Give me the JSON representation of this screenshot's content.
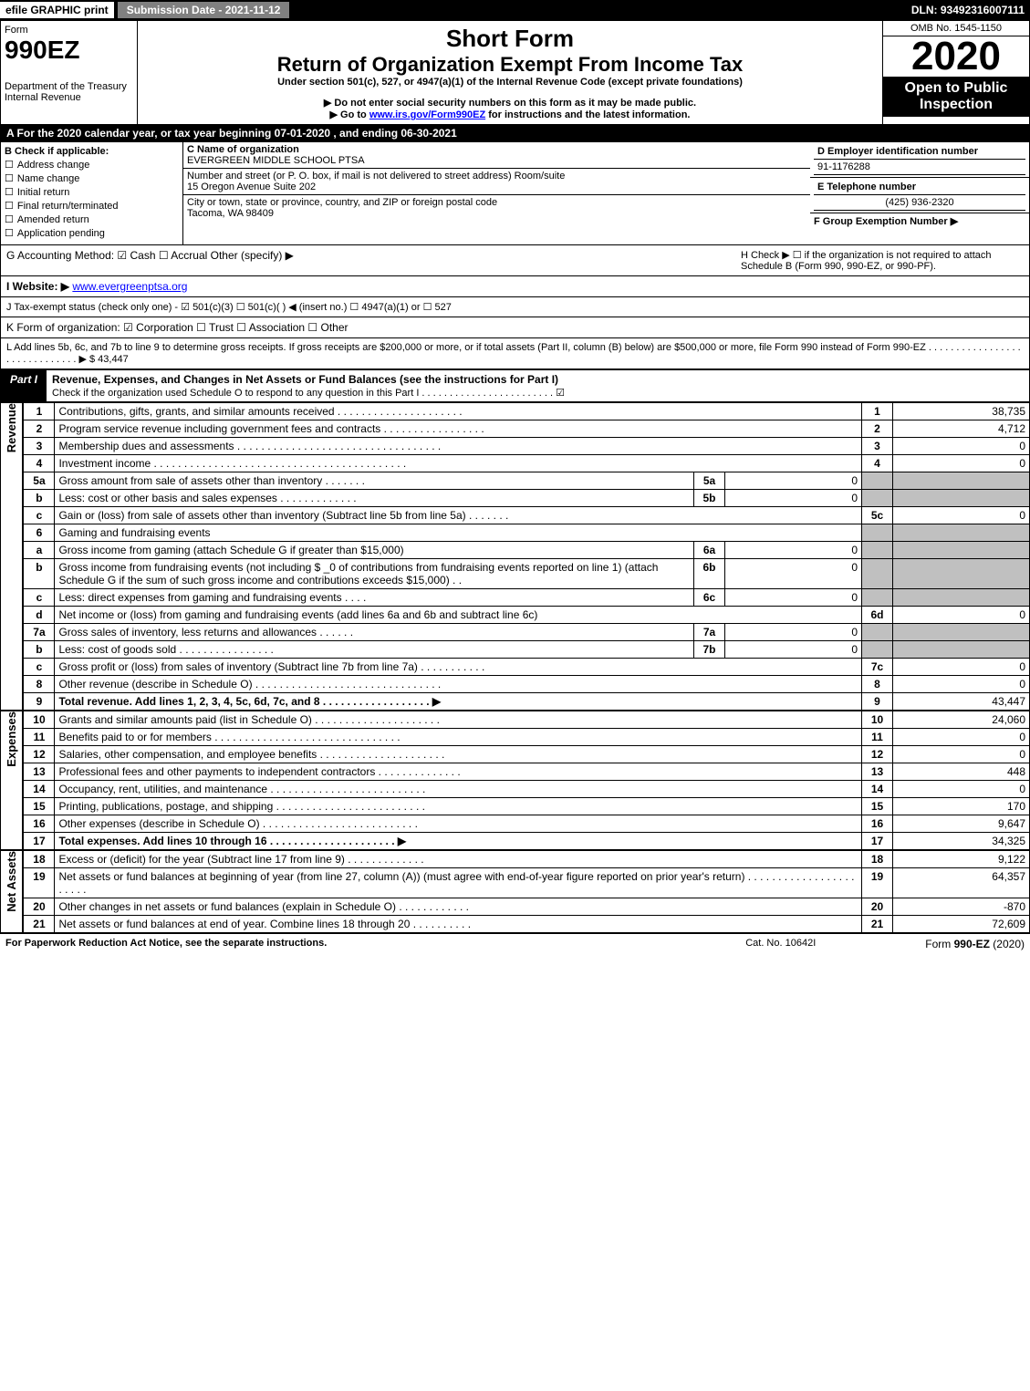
{
  "topbar": {
    "efile": "efile GRAPHIC print",
    "submission": "Submission Date - 2021-11-12",
    "dln": "DLN: 93492316007111"
  },
  "header": {
    "form_label": "Form",
    "form_number": "990EZ",
    "dept": "Department of the Treasury\nInternal Revenue",
    "short_form": "Short Form",
    "return_title": "Return of Organization Exempt From Income Tax",
    "section_text": "Under section 501(c), 527, or 4947(a)(1) of the Internal Revenue Code (except private foundations)",
    "warn1": "▶ Do not enter social security numbers on this form as it may be made public.",
    "warn2_pre": "▶ Go to ",
    "warn2_link": "www.irs.gov/Form990EZ",
    "warn2_post": " for instructions and the latest information.",
    "omb": "OMB No. 1545-1150",
    "year": "2020",
    "open_public": "Open to Public Inspection"
  },
  "line_a": "A For the 2020 calendar year, or tax year beginning 07-01-2020 , and ending 06-30-2021",
  "section_b": {
    "title": "B  Check if applicable:",
    "opts": [
      "Address change",
      "Name change",
      "Initial return",
      "Final return/terminated",
      "Amended return",
      "Application pending"
    ]
  },
  "section_c": {
    "name_label": "C Name of organization",
    "name": "EVERGREEN MIDDLE SCHOOL PTSA",
    "addr_label": "Number and street (or P. O. box, if mail is not delivered to street address)    Room/suite",
    "addr": "15 Oregon Avenue Suite 202",
    "city_label": "City or town, state or province, country, and ZIP or foreign postal code",
    "city": "Tacoma, WA  98409"
  },
  "right_info": {
    "d_label": "D Employer identification number",
    "d_val": "91-1176288",
    "e_label": "E Telephone number",
    "e_val": "(425) 936-2320",
    "f_label": "F Group Exemption Number  ▶"
  },
  "line_g": "G Accounting Method:   ☑ Cash  ☐ Accrual   Other (specify) ▶",
  "line_h": "H  Check ▶  ☐  if the organization is not required to attach Schedule B (Form 990, 990-EZ, or 990-PF).",
  "line_i_pre": "I Website: ▶",
  "line_i_link": "www.evergreenptsa.org",
  "line_j": "J Tax-exempt status (check only one) -  ☑ 501(c)(3) ☐ 501(c)(  ) ◀ (insert no.) ☐ 4947(a)(1) or ☐ 527",
  "line_k": "K Form of organization:   ☑ Corporation  ☐ Trust  ☐ Association  ☐ Other",
  "line_l": "L Add lines 5b, 6c, and 7b to line 9 to determine gross receipts. If gross receipts are $200,000 or more, or if total assets (Part II, column (B) below) are $500,000 or more, file Form 990 instead of Form 990-EZ . . . . . . . . . . . . . . . . . . . . . . . . . . . . . .  ▶ $ 43,447",
  "part1": {
    "label": "Part I",
    "title": "Revenue, Expenses, and Changes in Net Assets or Fund Balances (see the instructions for Part I)",
    "sub": "Check if the organization used Schedule O to respond to any question in this Part I . . . . . . . . . . . . . . . . . . . . . . . .  ☑"
  },
  "sections": {
    "revenue": "Revenue",
    "expenses": "Expenses",
    "netassets": "Net Assets"
  },
  "lines": [
    {
      "n": "1",
      "desc": "Contributions, gifts, grants, and similar amounts received . . . . . . . . . . . . . . . . . . . . .",
      "rn": "1",
      "rv": "38,735"
    },
    {
      "n": "2",
      "desc": "Program service revenue including government fees and contracts . . . . . . . . . . . . . . . . .",
      "rn": "2",
      "rv": "4,712"
    },
    {
      "n": "3",
      "desc": "Membership dues and assessments . . . . . . . . . . . . . . . . . . . . . . . . . . . . . . . . . .",
      "rn": "3",
      "rv": "0"
    },
    {
      "n": "4",
      "desc": "Investment income . . . . . . . . . . . . . . . . . . . . . . . . . . . . . . . . . . . . . . . . . .",
      "rn": "4",
      "rv": "0"
    },
    {
      "n": "5a",
      "desc": "Gross amount from sale of assets other than inventory . . . . . . .",
      "in": "5a",
      "iv": "0",
      "shade": true
    },
    {
      "n": "b",
      "desc": "Less: cost or other basis and sales expenses . . . . . . . . . . . . .",
      "in": "5b",
      "iv": "0",
      "shade": true
    },
    {
      "n": "c",
      "desc": "Gain or (loss) from sale of assets other than inventory (Subtract line 5b from line 5a) . . . . . . .",
      "rn": "5c",
      "rv": "0"
    },
    {
      "n": "6",
      "desc": "Gaming and fundraising events",
      "shade": true
    },
    {
      "n": "a",
      "desc": "Gross income from gaming (attach Schedule G if greater than $15,000)",
      "in": "6a",
      "iv": "0",
      "shade": true
    },
    {
      "n": "b",
      "desc": "Gross income from fundraising events (not including $ _0        of contributions from fundraising events reported on line 1) (attach Schedule G if the sum of such gross income and contributions exceeds $15,000)   . .",
      "in": "6b",
      "iv": "0",
      "shade": true
    },
    {
      "n": "c",
      "desc": "Less: direct expenses from gaming and fundraising events   . . . .",
      "in": "6c",
      "iv": "0",
      "shade": true
    },
    {
      "n": "d",
      "desc": "Net income or (loss) from gaming and fundraising events (add lines 6a and 6b and subtract line 6c)",
      "rn": "6d",
      "rv": "0"
    },
    {
      "n": "7a",
      "desc": "Gross sales of inventory, less returns and allowances . . . . . .",
      "in": "7a",
      "iv": "0",
      "shade": true
    },
    {
      "n": "b",
      "desc": "Less: cost of goods sold         . . . . . . . . . . . . . . . .",
      "in": "7b",
      "iv": "0",
      "shade": true
    },
    {
      "n": "c",
      "desc": "Gross profit or (loss) from sales of inventory (Subtract line 7b from line 7a) . . . . . . . . . . .",
      "rn": "7c",
      "rv": "0"
    },
    {
      "n": "8",
      "desc": "Other revenue (describe in Schedule O) . . . . . . . . . . . . . . . . . . . . . . . . . . . . . . .",
      "rn": "8",
      "rv": "0"
    },
    {
      "n": "9",
      "desc": "Total revenue. Add lines 1, 2, 3, 4, 5c, 6d, 7c, and 8  . . . . . . . . . . . . . . . . . .  ▶",
      "rn": "9",
      "rv": "43,447",
      "bold": true
    }
  ],
  "exp_lines": [
    {
      "n": "10",
      "desc": "Grants and similar amounts paid (list in Schedule O) . . . . . . . . . . . . . . . . . . . . .",
      "rn": "10",
      "rv": "24,060"
    },
    {
      "n": "11",
      "desc": "Benefits paid to or for members   . . . . . . . . . . . . . . . . . . . . . . . . . . . . . . .",
      "rn": "11",
      "rv": "0"
    },
    {
      "n": "12",
      "desc": "Salaries, other compensation, and employee benefits . . . . . . . . . . . . . . . . . . . . .",
      "rn": "12",
      "rv": "0"
    },
    {
      "n": "13",
      "desc": "Professional fees and other payments to independent contractors . . . . . . . . . . . . . .",
      "rn": "13",
      "rv": "448"
    },
    {
      "n": "14",
      "desc": "Occupancy, rent, utilities, and maintenance . . . . . . . . . . . . . . . . . . . . . . . . . .",
      "rn": "14",
      "rv": "0"
    },
    {
      "n": "15",
      "desc": "Printing, publications, postage, and shipping . . . . . . . . . . . . . . . . . . . . . . . . .",
      "rn": "15",
      "rv": "170"
    },
    {
      "n": "16",
      "desc": "Other expenses (describe in Schedule O)   . . . . . . . . . . . . . . . . . . . . . . . . . .",
      "rn": "16",
      "rv": "9,647"
    },
    {
      "n": "17",
      "desc": "Total expenses. Add lines 10 through 16    . . . . . . . . . . . . . . . . . . . . .  ▶",
      "rn": "17",
      "rv": "34,325",
      "bold": true
    }
  ],
  "net_lines": [
    {
      "n": "18",
      "desc": "Excess or (deficit) for the year (Subtract line 17 from line 9)       . . . . . . . . . . . . .",
      "rn": "18",
      "rv": "9,122"
    },
    {
      "n": "19",
      "desc": "Net assets or fund balances at beginning of year (from line 27, column (A)) (must agree with end-of-year figure reported on prior year's return) . . . . . . . . . . . . . . . . . . . . . . .",
      "rn": "19",
      "rv": "64,357"
    },
    {
      "n": "20",
      "desc": "Other changes in net assets or fund balances (explain in Schedule O) . . . . . . . . . . . .",
      "rn": "20",
      "rv": "-870"
    },
    {
      "n": "21",
      "desc": "Net assets or fund balances at end of year. Combine lines 18 through 20 . . . . . . . . . .",
      "rn": "21",
      "rv": "72,609"
    }
  ],
  "footer": {
    "paperwork": "For Paperwork Reduction Act Notice, see the separate instructions.",
    "cat": "Cat. No. 10642I",
    "formref": "Form 990-EZ (2020)"
  }
}
